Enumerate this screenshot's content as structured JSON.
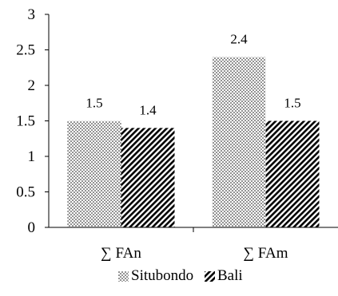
{
  "chart_data": {
    "type": "bar",
    "categories": [
      "∑ FAn",
      "∑ FAm"
    ],
    "series": [
      {
        "name": "Situbondo",
        "values": [
          1.5,
          2.4
        ],
        "pattern": "dots"
      },
      {
        "name": "Bali",
        "values": [
          1.4,
          1.5
        ],
        "pattern": "diagonal-stripes"
      }
    ],
    "value_labels": [
      [
        "1.5",
        "2.4"
      ],
      [
        "1.4",
        "1.5"
      ]
    ],
    "y_ticks": [
      "0",
      "0.5",
      "1",
      "1.5",
      "2",
      "2.5",
      "3"
    ],
    "ylim": [
      0,
      3
    ],
    "grid": false,
    "legend_position": "bottom",
    "title": "",
    "xlabel": "",
    "ylabel": "",
    "colors": {
      "axis": "#000000",
      "pattern": "#000000",
      "background": "#ffffff"
    }
  }
}
